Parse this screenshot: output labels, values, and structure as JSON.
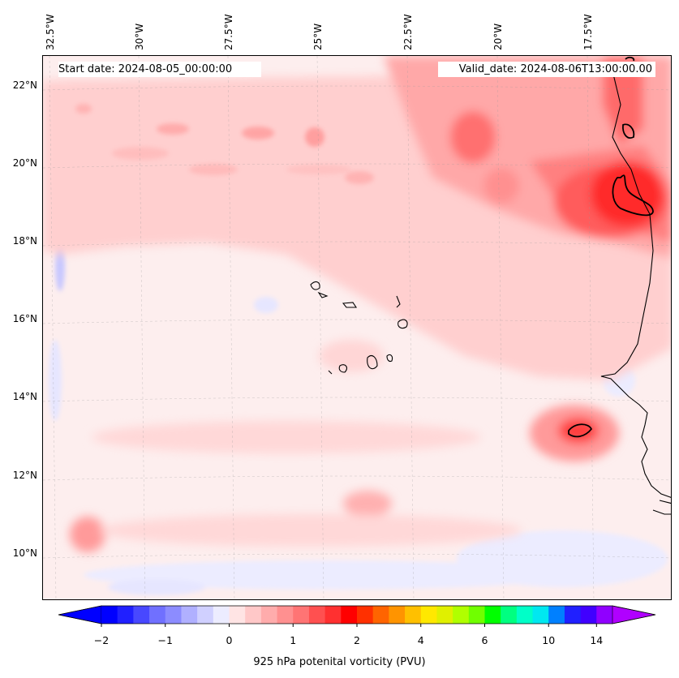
{
  "header": {
    "start_date": "Start date: 2024-08-05_00:00:00",
    "valid_date": "Valid_date: 2024-08-06T13:00:00.00"
  },
  "axes": {
    "lon_labels": [
      "32.5°W",
      "30°W",
      "27.5°W",
      "25°W",
      "22.5°W",
      "20°W",
      "17.5°W"
    ],
    "lat_labels": [
      "22°N",
      "20°N",
      "18°N",
      "16°N",
      "14°N",
      "12°N",
      "10°N"
    ],
    "lon_range": [
      -32.7,
      -15.1
    ],
    "lat_range": [
      8.8,
      22.8
    ]
  },
  "colorbar": {
    "label": "925 hPa potenital vorticity (PVU)",
    "tick_labels": [
      "−2",
      "−1",
      "0",
      "1",
      "2",
      "4",
      "6",
      "10",
      "14"
    ],
    "colors": [
      "#0000ff",
      "#2020ff",
      "#4848ff",
      "#7070ff",
      "#8c8cff",
      "#b0b0ff",
      "#d0d0ff",
      "#ececff",
      "#ffe4e4",
      "#ffc8c8",
      "#ffacac",
      "#ff9090",
      "#ff7474",
      "#ff5050",
      "#ff3030",
      "#ff0000",
      "#ff3000",
      "#ff6400",
      "#ff9400",
      "#ffc000",
      "#ffe800",
      "#e0f000",
      "#b0ff00",
      "#70ff00",
      "#00ff00",
      "#00ff80",
      "#00ffc8",
      "#00e8f0",
      "#0080ff",
      "#2020ff",
      "#4000ff",
      "#9000ff"
    ],
    "extend_low_color": "#0000ff",
    "extend_high_color": "#b000ff"
  },
  "colors": {
    "background_field": "#fdeeee",
    "coastline": "#000000",
    "strong_contour": "#000000"
  }
}
